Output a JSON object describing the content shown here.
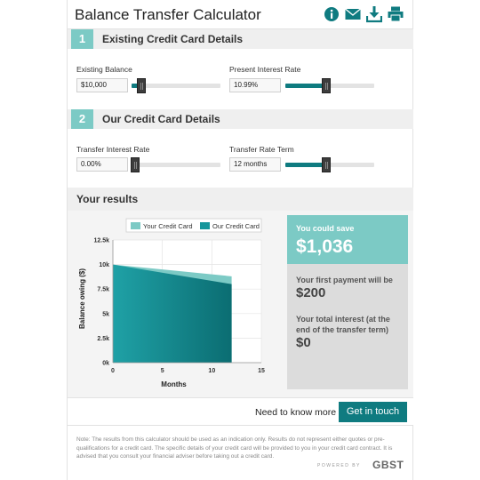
{
  "header": {
    "title": "Balance Transfer Calculator",
    "icons": [
      "info-icon",
      "email-icon",
      "download-icon",
      "print-icon"
    ]
  },
  "section1": {
    "number": "1",
    "title": "Existing Credit Card Details",
    "balance_label": "Existing Balance",
    "balance_value": "$10,000",
    "balance_slider": 0.11,
    "rate_label": "Present Interest Rate",
    "rate_value": "10.99%",
    "rate_slider": 0.46
  },
  "section2": {
    "number": "2",
    "title": "Our Credit Card Details",
    "transfer_rate_label": "Transfer Interest Rate",
    "transfer_rate_value": "0.00%",
    "transfer_rate_slider": 0.04,
    "term_label": "Transfer Rate Term",
    "term_value": "12 months",
    "term_slider": 0.46
  },
  "results": {
    "title": "Your results",
    "save_label": "You could save",
    "save_value": "$1,036",
    "first_payment_label": "Your first payment will be",
    "first_payment_value": "$200",
    "total_interest_label": "Your total interest (at the end of the transfer term)",
    "total_interest_value": "$0"
  },
  "cta": {
    "text": "Need to know more",
    "button": "Get in touch"
  },
  "footer": {
    "note": "Note: The results from this calculator should be used as an indication only. Results do not represent either quotes or pre-qualifications for a credit card. The specific details of your credit card will be provided to you in your credit card contract. It is advised that you consult your financial adviser before taking out a credit card.",
    "powered_by": "POWERED BY",
    "brand": "GBST"
  },
  "colors": {
    "accent": "#7ccac5",
    "dark_teal": "#0f7b80",
    "your_card": "#7ccac5",
    "our_card": "#16969b"
  },
  "chart_data": {
    "type": "area",
    "title": "",
    "xlabel": "Months",
    "ylabel": "Balance owing ($)",
    "x_ticks": [
      "0",
      "5",
      "10",
      "15"
    ],
    "y_ticks": [
      "0k",
      "2.5k",
      "5k",
      "7.5k",
      "10k",
      "12.5k"
    ],
    "xlim": [
      0,
      15
    ],
    "ylim": [
      0,
      12500
    ],
    "legend": "top",
    "series": [
      {
        "name": "Your Credit Card",
        "color": "#7ccac5",
        "x": [
          0,
          12
        ],
        "values": [
          10000,
          8800
        ]
      },
      {
        "name": "Our Credit Card",
        "color": "#16969b",
        "x": [
          0,
          12
        ],
        "values": [
          10000,
          8000
        ]
      }
    ]
  }
}
